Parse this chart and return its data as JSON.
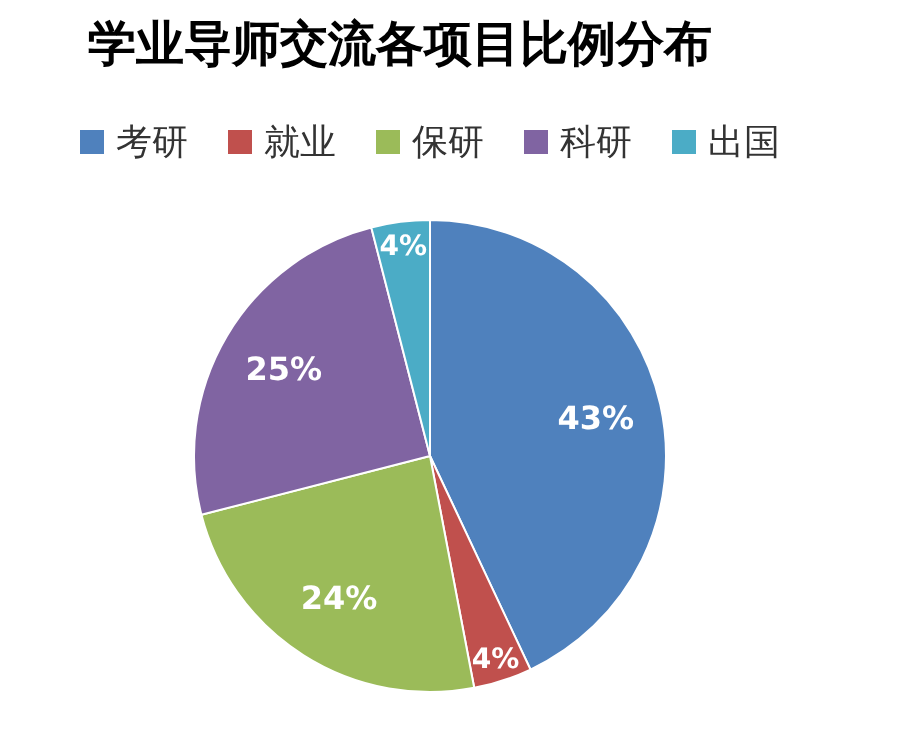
{
  "chart_data": {
    "type": "pie",
    "title": "学业导师交流各项目比例分布",
    "categories": [
      "考研",
      "就业",
      "保研",
      "科研",
      "出国"
    ],
    "values": [
      43,
      4,
      24,
      25,
      4
    ],
    "colors": [
      "#4f81bd",
      "#c0504d",
      "#9bbb59",
      "#8064a2",
      "#4bacc6"
    ],
    "value_labels": [
      "43%",
      "4%",
      "24%",
      "25%",
      "4%"
    ],
    "legend": "top"
  }
}
